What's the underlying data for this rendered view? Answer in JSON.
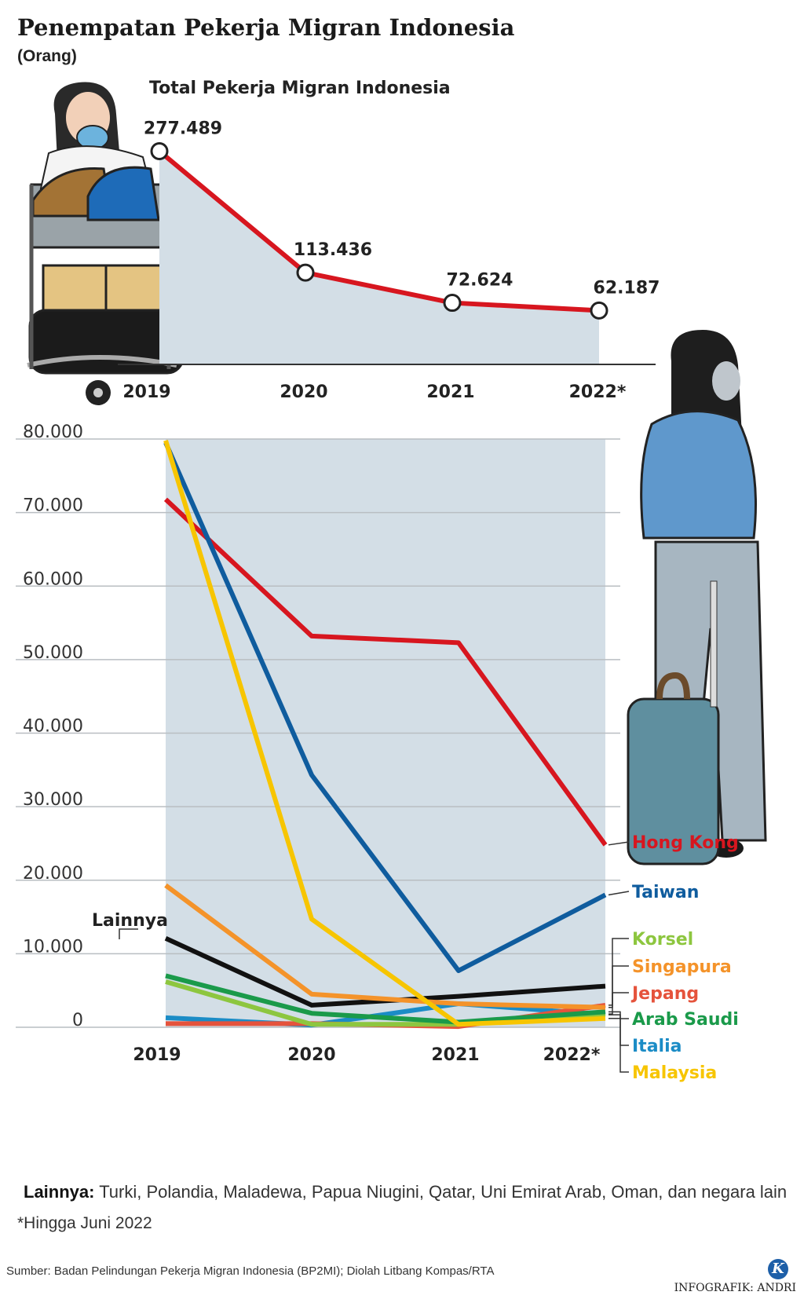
{
  "title": "Penempatan Pekerja Migran Indonesia",
  "unit": "(Orang)",
  "chart_data": [
    {
      "type": "area",
      "title": "Total Pekerja Migran Indonesia",
      "categories": [
        "2019",
        "2020",
        "2021",
        "2022*"
      ],
      "values": [
        277489,
        113436,
        72624,
        62187
      ],
      "value_labels": [
        "277.489",
        "113.436",
        "72.624",
        "62.187"
      ],
      "line_color": "#d7161f",
      "fill_color": "#d3dee6",
      "ylim": [
        0,
        300000
      ]
    },
    {
      "type": "line",
      "categories": [
        "2019",
        "2020",
        "2021",
        "2022*"
      ],
      "ylim": [
        0,
        80000
      ],
      "yticks": [
        0,
        10000,
        20000,
        30000,
        40000,
        50000,
        60000,
        70000,
        80000
      ],
      "ytick_labels": [
        "0",
        "10.000",
        "20.000",
        "30.000",
        "40.000",
        "50.000",
        "60.000",
        "70.000",
        "80.000"
      ],
      "grid": true,
      "fill_color": "#d3dee6",
      "fill_top": 80000,
      "series": [
        {
          "name": "Hong Kong",
          "color": "#d7161f",
          "values": [
            71800,
            53200,
            52300,
            24800
          ]
        },
        {
          "name": "Taiwan",
          "color": "#0f5c9e",
          "values": [
            79500,
            34300,
            7700,
            18000
          ]
        },
        {
          "name": "Korsel",
          "color": "#8dc63f",
          "values": [
            6200,
            400,
            400,
            1800
          ]
        },
        {
          "name": "Singapura",
          "color": "#f4932a",
          "values": [
            19300,
            4500,
            3200,
            2700
          ]
        },
        {
          "name": "Jepang",
          "color": "#e5533c",
          "values": [
            500,
            500,
            100,
            3000
          ]
        },
        {
          "name": "Arab Saudi",
          "color": "#1a9a4a",
          "values": [
            7000,
            1900,
            700,
            2100
          ]
        },
        {
          "name": "Italia",
          "color": "#1b8cc6",
          "values": [
            1300,
            300,
            3200,
            1700
          ]
        },
        {
          "name": "Malaysia",
          "color": "#f7c500",
          "values": [
            79800,
            14700,
            400,
            1200
          ]
        },
        {
          "name": "Lainnya",
          "color": "#111111",
          "values": [
            12100,
            3000,
            4200,
            5600
          ]
        }
      ]
    }
  ],
  "notes": {
    "lainnya_label": "Lainnya:",
    "lainnya_text": "Turki, Polandia, Maladewa, Papua Niugini, Qatar, Uni Emirat Arab, Oman, dan negara lain",
    "footnote": "*Hingga Juni 2022",
    "source": "Sumber: Badan Pelindungan Pekerja Migran Indonesia (BP2MI); Diolah Litbang Kompas/RTA",
    "credit": "INFOGRAFIK: ANDRI",
    "logo_letter": "K"
  }
}
